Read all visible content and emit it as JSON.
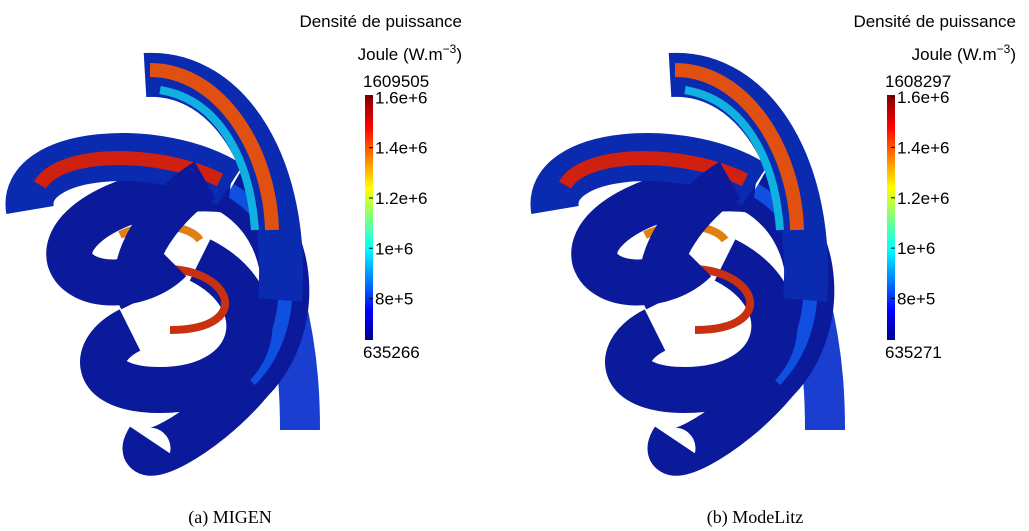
{
  "panels": [
    {
      "legend_title": "Densité de puissance",
      "legend_unit": [
        "Joule (W.m",
        "−3",
        ")"
      ],
      "max": 1609505,
      "min": 635266,
      "ticks": [
        {
          "value": 1600000,
          "label": "1.6e+6"
        },
        {
          "value": 1400000,
          "label": "1.4e+6"
        },
        {
          "value": 1200000,
          "label": "1.2e+6"
        },
        {
          "value": 1000000,
          "label": "1e+6"
        },
        {
          "value": 800000,
          "label": "8e+5"
        }
      ],
      "caption": "(a) MIGEN"
    },
    {
      "legend_title": "Densité de puissance",
      "legend_unit": [
        "Joule (W.m",
        "−3",
        ")"
      ],
      "max": 1608297,
      "min": 635271,
      "ticks": [
        {
          "value": 1600000,
          "label": "1.6e+6"
        },
        {
          "value": 1400000,
          "label": "1.4e+6"
        },
        {
          "value": 1200000,
          "label": "1.2e+6"
        },
        {
          "value": 1000000,
          "label": "1e+6"
        },
        {
          "value": 800000,
          "label": "8e+5"
        }
      ],
      "caption": "(b) ModeLitz"
    }
  ]
}
